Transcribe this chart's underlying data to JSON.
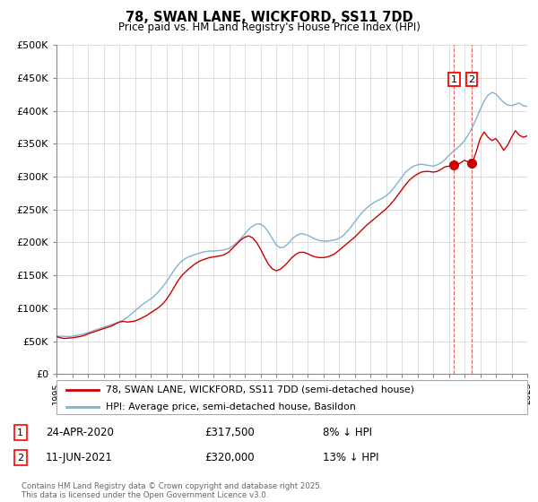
{
  "title": "78, SWAN LANE, WICKFORD, SS11 7DD",
  "subtitle": "Price paid vs. HM Land Registry's House Price Index (HPI)",
  "ylabel_ticks": [
    "£0",
    "£50K",
    "£100K",
    "£150K",
    "£200K",
    "£250K",
    "£300K",
    "£350K",
    "£400K",
    "£450K",
    "£500K"
  ],
  "ytick_vals": [
    0,
    50000,
    100000,
    150000,
    200000,
    250000,
    300000,
    350000,
    400000,
    450000,
    500000
  ],
  "ylim": [
    0,
    500000
  ],
  "legend_line1": "78, SWAN LANE, WICKFORD, SS11 7DD (semi-detached house)",
  "legend_line2": "HPI: Average price, semi-detached house, Basildon",
  "line1_color": "#cc0000",
  "line2_color": "#7fb3d3",
  "annotation1_label": "1",
  "annotation1_date": "24-APR-2020",
  "annotation1_price": "£317,500",
  "annotation1_hpi": "8% ↓ HPI",
  "annotation2_label": "2",
  "annotation2_date": "11-JUN-2021",
  "annotation2_price": "£320,000",
  "annotation2_hpi": "13% ↓ HPI",
  "footer": "Contains HM Land Registry data © Crown copyright and database right 2025.\nThis data is licensed under the Open Government Licence v3.0.",
  "hpi_line": [
    [
      1995.0,
      57000
    ],
    [
      1995.25,
      57500
    ],
    [
      1995.5,
      57200
    ],
    [
      1995.75,
      56800
    ],
    [
      1996.0,
      57500
    ],
    [
      1996.25,
      58500
    ],
    [
      1996.5,
      59500
    ],
    [
      1996.75,
      61000
    ],
    [
      1997.0,
      63000
    ],
    [
      1997.25,
      65000
    ],
    [
      1997.5,
      67000
    ],
    [
      1997.75,
      69000
    ],
    [
      1998.0,
      71000
    ],
    [
      1998.25,
      73000
    ],
    [
      1998.5,
      75000
    ],
    [
      1998.75,
      77000
    ],
    [
      1999.0,
      79000
    ],
    [
      1999.25,
      82000
    ],
    [
      1999.5,
      86000
    ],
    [
      1999.75,
      91000
    ],
    [
      2000.0,
      96000
    ],
    [
      2000.25,
      101000
    ],
    [
      2000.5,
      106000
    ],
    [
      2000.75,
      110000
    ],
    [
      2001.0,
      114000
    ],
    [
      2001.25,
      119000
    ],
    [
      2001.5,
      125000
    ],
    [
      2001.75,
      132000
    ],
    [
      2002.0,
      140000
    ],
    [
      2002.25,
      149000
    ],
    [
      2002.5,
      158000
    ],
    [
      2002.75,
      166000
    ],
    [
      2003.0,
      172000
    ],
    [
      2003.25,
      176000
    ],
    [
      2003.5,
      179000
    ],
    [
      2003.75,
      181000
    ],
    [
      2004.0,
      183000
    ],
    [
      2004.25,
      185000
    ],
    [
      2004.5,
      186000
    ],
    [
      2004.75,
      187000
    ],
    [
      2005.0,
      187000
    ],
    [
      2005.25,
      187500
    ],
    [
      2005.5,
      188000
    ],
    [
      2005.75,
      189000
    ],
    [
      2006.0,
      191000
    ],
    [
      2006.25,
      195000
    ],
    [
      2006.5,
      200000
    ],
    [
      2006.75,
      206000
    ],
    [
      2007.0,
      213000
    ],
    [
      2007.25,
      220000
    ],
    [
      2007.5,
      225000
    ],
    [
      2007.75,
      228000
    ],
    [
      2008.0,
      228000
    ],
    [
      2008.25,
      224000
    ],
    [
      2008.5,
      216000
    ],
    [
      2008.75,
      206000
    ],
    [
      2009.0,
      196000
    ],
    [
      2009.25,
      192000
    ],
    [
      2009.5,
      193000
    ],
    [
      2009.75,
      198000
    ],
    [
      2010.0,
      205000
    ],
    [
      2010.25,
      210000
    ],
    [
      2010.5,
      213000
    ],
    [
      2010.75,
      213000
    ],
    [
      2011.0,
      211000
    ],
    [
      2011.25,
      208000
    ],
    [
      2011.5,
      205000
    ],
    [
      2011.75,
      203000
    ],
    [
      2012.0,
      202000
    ],
    [
      2012.25,
      202000
    ],
    [
      2012.5,
      203000
    ],
    [
      2012.75,
      204000
    ],
    [
      2013.0,
      206000
    ],
    [
      2013.25,
      210000
    ],
    [
      2013.5,
      216000
    ],
    [
      2013.75,
      223000
    ],
    [
      2014.0,
      231000
    ],
    [
      2014.25,
      239000
    ],
    [
      2014.5,
      246000
    ],
    [
      2014.75,
      252000
    ],
    [
      2015.0,
      257000
    ],
    [
      2015.25,
      261000
    ],
    [
      2015.5,
      264000
    ],
    [
      2015.75,
      267000
    ],
    [
      2016.0,
      271000
    ],
    [
      2016.25,
      276000
    ],
    [
      2016.5,
      283000
    ],
    [
      2016.75,
      291000
    ],
    [
      2017.0,
      299000
    ],
    [
      2017.25,
      307000
    ],
    [
      2017.5,
      312000
    ],
    [
      2017.75,
      316000
    ],
    [
      2018.0,
      318000
    ],
    [
      2018.25,
      319000
    ],
    [
      2018.5,
      318000
    ],
    [
      2018.75,
      317000
    ],
    [
      2019.0,
      316000
    ],
    [
      2019.25,
      318000
    ],
    [
      2019.5,
      321000
    ],
    [
      2019.75,
      326000
    ],
    [
      2020.0,
      332000
    ],
    [
      2020.25,
      338000
    ],
    [
      2020.5,
      343000
    ],
    [
      2020.75,
      348000
    ],
    [
      2021.0,
      355000
    ],
    [
      2021.25,
      364000
    ],
    [
      2021.5,
      375000
    ],
    [
      2021.75,
      388000
    ],
    [
      2022.0,
      402000
    ],
    [
      2022.25,
      415000
    ],
    [
      2022.5,
      424000
    ],
    [
      2022.75,
      428000
    ],
    [
      2023.0,
      426000
    ],
    [
      2023.25,
      419000
    ],
    [
      2023.5,
      413000
    ],
    [
      2023.75,
      409000
    ],
    [
      2024.0,
      408000
    ],
    [
      2024.25,
      410000
    ],
    [
      2024.5,
      412000
    ],
    [
      2024.75,
      408000
    ],
    [
      2025.0,
      407000
    ]
  ],
  "price_line": [
    [
      1995.0,
      57000
    ],
    [
      1995.25,
      55000
    ],
    [
      1995.5,
      54000
    ],
    [
      1995.75,
      54500
    ],
    [
      1996.0,
      55000
    ],
    [
      1996.25,
      56000
    ],
    [
      1996.5,
      57000
    ],
    [
      1996.75,
      58500
    ],
    [
      1997.0,
      61000
    ],
    [
      1997.25,
      63000
    ],
    [
      1997.5,
      65000
    ],
    [
      1997.75,
      67000
    ],
    [
      1998.0,
      69000
    ],
    [
      1998.25,
      71000
    ],
    [
      1998.5,
      73000
    ],
    [
      1998.75,
      76000
    ],
    [
      1999.0,
      79000
    ],
    [
      1999.25,
      80000
    ],
    [
      1999.5,
      79000
    ],
    [
      1999.75,
      79500
    ],
    [
      2000.0,
      80500
    ],
    [
      2000.25,
      83000
    ],
    [
      2000.5,
      86000
    ],
    [
      2000.75,
      89000
    ],
    [
      2001.0,
      93000
    ],
    [
      2001.25,
      97000
    ],
    [
      2001.5,
      101000
    ],
    [
      2001.75,
      106000
    ],
    [
      2002.0,
      113000
    ],
    [
      2002.25,
      122000
    ],
    [
      2002.5,
      132000
    ],
    [
      2002.75,
      142000
    ],
    [
      2003.0,
      150000
    ],
    [
      2003.25,
      156000
    ],
    [
      2003.5,
      161000
    ],
    [
      2003.75,
      166000
    ],
    [
      2004.0,
      170000
    ],
    [
      2004.25,
      173000
    ],
    [
      2004.5,
      175000
    ],
    [
      2004.75,
      177000
    ],
    [
      2005.0,
      178000
    ],
    [
      2005.25,
      179000
    ],
    [
      2005.5,
      180000
    ],
    [
      2005.75,
      182000
    ],
    [
      2006.0,
      186000
    ],
    [
      2006.25,
      192000
    ],
    [
      2006.5,
      198000
    ],
    [
      2006.75,
      204000
    ],
    [
      2007.0,
      208000
    ],
    [
      2007.25,
      210000
    ],
    [
      2007.5,
      207000
    ],
    [
      2007.75,
      200000
    ],
    [
      2008.0,
      190000
    ],
    [
      2008.25,
      178000
    ],
    [
      2008.5,
      167000
    ],
    [
      2008.75,
      160000
    ],
    [
      2009.0,
      157000
    ],
    [
      2009.25,
      159000
    ],
    [
      2009.5,
      164000
    ],
    [
      2009.75,
      170000
    ],
    [
      2010.0,
      177000
    ],
    [
      2010.25,
      182000
    ],
    [
      2010.5,
      185000
    ],
    [
      2010.75,
      185000
    ],
    [
      2011.0,
      183000
    ],
    [
      2011.25,
      180000
    ],
    [
      2011.5,
      178000
    ],
    [
      2011.75,
      177000
    ],
    [
      2012.0,
      177000
    ],
    [
      2012.25,
      178000
    ],
    [
      2012.5,
      180000
    ],
    [
      2012.75,
      183000
    ],
    [
      2013.0,
      188000
    ],
    [
      2013.25,
      193000
    ],
    [
      2013.5,
      198000
    ],
    [
      2013.75,
      203000
    ],
    [
      2014.0,
      208000
    ],
    [
      2014.25,
      214000
    ],
    [
      2014.5,
      220000
    ],
    [
      2014.75,
      226000
    ],
    [
      2015.0,
      231000
    ],
    [
      2015.25,
      236000
    ],
    [
      2015.5,
      241000
    ],
    [
      2015.75,
      246000
    ],
    [
      2016.0,
      251000
    ],
    [
      2016.25,
      257000
    ],
    [
      2016.5,
      264000
    ],
    [
      2016.75,
      272000
    ],
    [
      2017.0,
      280000
    ],
    [
      2017.25,
      288000
    ],
    [
      2017.5,
      295000
    ],
    [
      2017.75,
      300000
    ],
    [
      2018.0,
      304000
    ],
    [
      2018.25,
      307000
    ],
    [
      2018.5,
      308000
    ],
    [
      2018.75,
      308000
    ],
    [
      2019.0,
      307000
    ],
    [
      2019.25,
      308000
    ],
    [
      2019.5,
      311000
    ],
    [
      2019.75,
      315000
    ],
    [
      2020.0,
      316000
    ],
    [
      2020.33,
      317500
    ],
    [
      2020.5,
      318000
    ],
    [
      2020.75,
      321000
    ],
    [
      2021.0,
      325000
    ],
    [
      2021.45,
      320000
    ],
    [
      2021.5,
      320500
    ],
    [
      2021.75,
      338000
    ],
    [
      2022.0,
      358000
    ],
    [
      2022.25,
      368000
    ],
    [
      2022.5,
      360000
    ],
    [
      2022.75,
      355000
    ],
    [
      2023.0,
      358000
    ],
    [
      2023.25,
      350000
    ],
    [
      2023.5,
      340000
    ],
    [
      2023.75,
      348000
    ],
    [
      2024.0,
      360000
    ],
    [
      2024.25,
      370000
    ],
    [
      2024.5,
      363000
    ],
    [
      2024.75,
      360000
    ],
    [
      2025.0,
      362000
    ]
  ],
  "annotation1_year": 2020.33,
  "annotation1_value": 317500,
  "annotation2_year": 2021.45,
  "annotation2_value": 320000,
  "xmin": 1995,
  "xmax": 2025
}
